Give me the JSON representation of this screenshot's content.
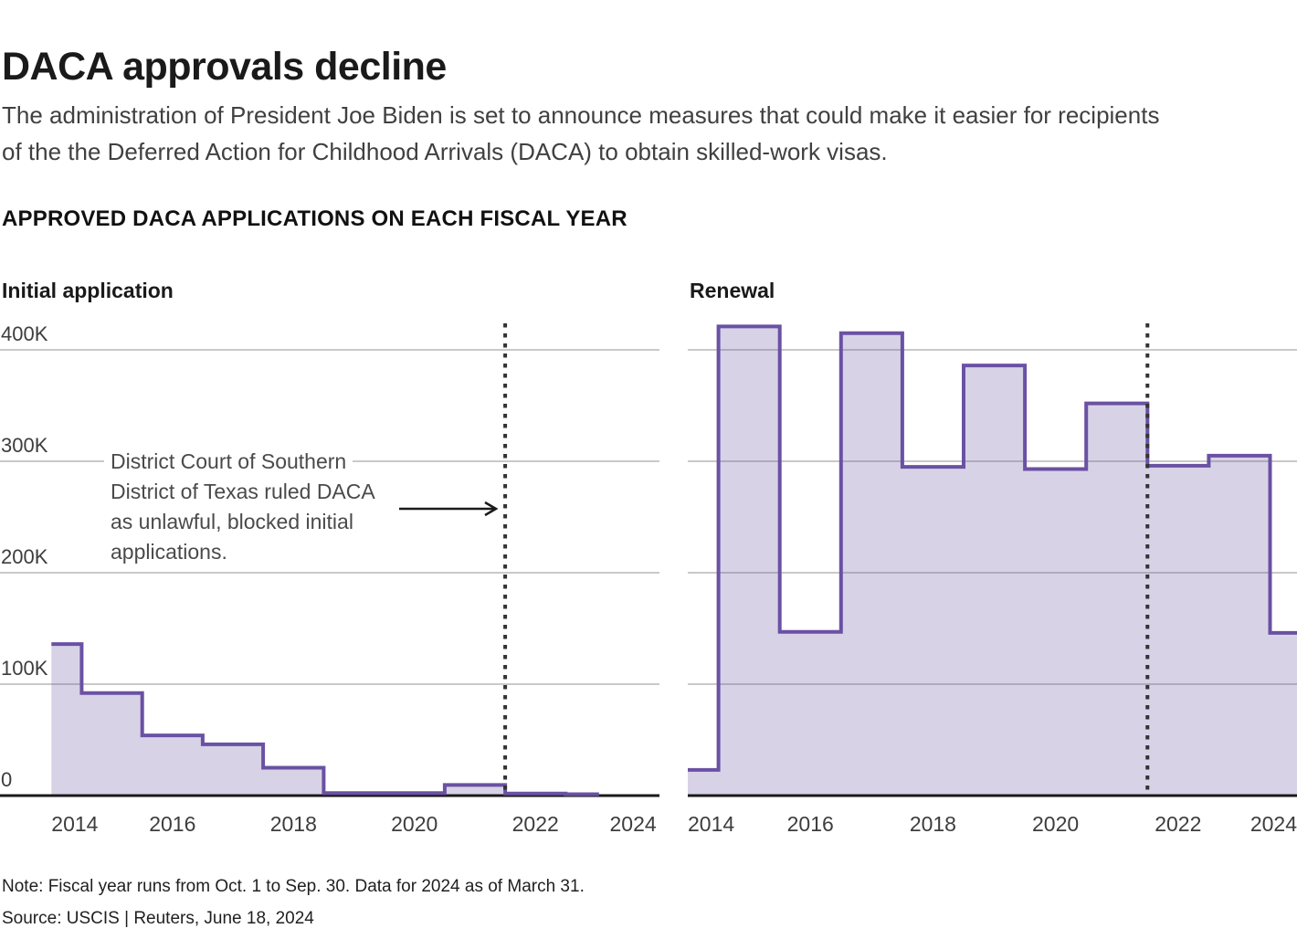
{
  "header": {
    "title": "DACA approvals decline",
    "subtitle_lines": [
      "The administration of President Joe Biden is set to announce measures that could make it easier for recipients",
      "of the the Deferred Action for Childhood Arrivals (DACA) to obtain skilled-work visas."
    ]
  },
  "kicker": "APPROVED DACA APPLICATIONS ON EACH FISCAL YEAR",
  "annotation": {
    "lines": [
      "District Court of Southern",
      "District of Texas ruled DACA",
      "as unlawful, blocked initial",
      "applications."
    ]
  },
  "footer": {
    "note": "Note: Fiscal year runs from Oct. 1 to Sep. 30. Data for 2024 as of March 31.",
    "source": "Source: USCIS | Reuters, June 18, 2024"
  },
  "chart_style": {
    "line_color": "#6a51a3",
    "fill_color": "rgba(106,81,163,0.26)",
    "grid_color": "#c9c9c9",
    "axis_color": "#1a1a1a",
    "marker_color": "#333333",
    "tick_label_color": "#3d3d3d",
    "legend_position": "none",
    "grid": "horizontal only"
  },
  "chart_data": [
    {
      "type": "area",
      "interpolation": "step-center",
      "title": "Initial application",
      "years": [
        2014,
        2015,
        2016,
        2017,
        2018,
        2019,
        2020,
        2021,
        2022,
        2023
      ],
      "values": [
        136000,
        92000,
        54000,
        46000,
        25000,
        2200,
        2200,
        9500,
        1800,
        1200
      ],
      "x_domain": [
        2013.15,
        2024.05
      ],
      "series_end": 2023.05,
      "x_ticks": [
        2014,
        2016,
        2018,
        2020,
        2022,
        2024
      ],
      "y_ticks": [
        {
          "label": "400K",
          "value": 400000
        },
        {
          "label": "300K",
          "value": 300000
        },
        {
          "label": "200K",
          "value": 200000
        },
        {
          "label": "100K",
          "value": 100000
        },
        {
          "label": "0",
          "value": 0
        }
      ],
      "ylim": [
        0,
        425000
      ],
      "show_y_labels": true,
      "marker_year": 2021.5,
      "has_annotation_arrow": true
    },
    {
      "type": "area",
      "interpolation": "step-center",
      "title": "Renewal",
      "years": [
        2014,
        2015,
        2016,
        2017,
        2018,
        2019,
        2020,
        2021,
        2022,
        2023,
        2024
      ],
      "values": [
        23000,
        421000,
        147000,
        415000,
        295000,
        386000,
        293000,
        352000,
        296000,
        305000,
        146000
      ],
      "x_domain": [
        2014.0,
        2023.94
      ],
      "series_end": 2023.94,
      "x_ticks": [
        2014,
        2016,
        2018,
        2020,
        2022,
        2024
      ],
      "y_ticks": [
        {
          "label": "400K",
          "value": 400000
        },
        {
          "label": "300K",
          "value": 300000
        },
        {
          "label": "200K",
          "value": 200000
        },
        {
          "label": "100K",
          "value": 100000
        },
        {
          "label": "0",
          "value": 0
        }
      ],
      "ylim": [
        0,
        425000
      ],
      "show_y_labels": false,
      "marker_year": 2021.5,
      "has_annotation_arrow": false
    }
  ]
}
